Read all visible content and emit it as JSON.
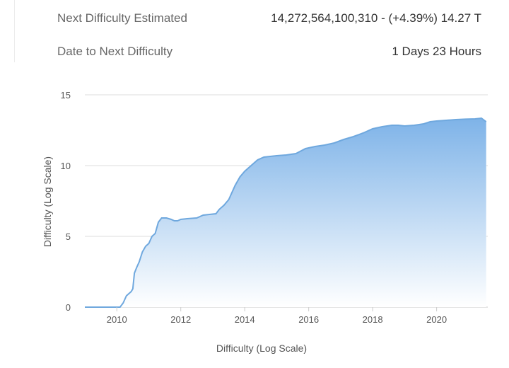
{
  "stats": {
    "next_difficulty_label": "Next Difficulty Estimated",
    "next_difficulty_value": "14,272,564,100,310 - (+4.39%) 14.27 T",
    "date_label": "Date to Next Difficulty",
    "date_value": "1 Days 23 Hours"
  },
  "colors": {
    "area_top": "#7eb3e8",
    "area_bottom": "#ffffff",
    "line": "#6fa8de",
    "grid": "#dddddd",
    "text": "#555555"
  },
  "chart_data": {
    "type": "area",
    "title": "",
    "xlabel": "Difficulty (Log Scale)",
    "ylabel": "Difficulty (Log Scale)",
    "xlim": [
      2009.0,
      2021.6
    ],
    "ylim": [
      0,
      15
    ],
    "x_ticks": [
      2010,
      2012,
      2014,
      2016,
      2018,
      2020
    ],
    "y_ticks": [
      0,
      5,
      10,
      15
    ],
    "grid": true,
    "series": [
      {
        "x": [
          2009.0,
          2009.5,
          2010.0,
          2010.1,
          2010.2,
          2010.3,
          2010.45,
          2010.5,
          2010.55,
          2010.62,
          2010.7,
          2010.8,
          2010.9,
          2011.0,
          2011.1,
          2011.2,
          2011.3,
          2011.4,
          2011.45,
          2011.55,
          2011.7,
          2011.8,
          2011.9,
          2012.0,
          2012.2,
          2012.5,
          2012.7,
          2012.9,
          2013.1,
          2013.2,
          2013.35,
          2013.5,
          2013.7,
          2013.85,
          2014.0,
          2014.2,
          2014.4,
          2014.6,
          2014.8,
          2015.0,
          2015.3,
          2015.6,
          2015.9,
          2016.2,
          2016.5,
          2016.8,
          2017.1,
          2017.4,
          2017.7,
          2018.0,
          2018.3,
          2018.6,
          2018.8,
          2019.0,
          2019.3,
          2019.6,
          2019.8,
          2020.0,
          2020.3,
          2020.6,
          2020.9,
          2021.2,
          2021.4,
          2021.55
        ],
        "y": [
          0,
          0,
          0,
          0,
          0.3,
          0.8,
          1.1,
          1.3,
          2.4,
          2.8,
          3.2,
          3.9,
          4.3,
          4.5,
          5.0,
          5.2,
          6.0,
          6.3,
          6.3,
          6.3,
          6.2,
          6.1,
          6.1,
          6.2,
          6.25,
          6.3,
          6.5,
          6.55,
          6.6,
          6.9,
          7.2,
          7.6,
          8.6,
          9.2,
          9.6,
          10.0,
          10.4,
          10.6,
          10.65,
          10.7,
          10.75,
          10.85,
          11.2,
          11.35,
          11.45,
          11.6,
          11.85,
          12.05,
          12.3,
          12.6,
          12.75,
          12.85,
          12.85,
          12.8,
          12.85,
          12.95,
          13.1,
          13.15,
          13.2,
          13.25,
          13.28,
          13.3,
          13.35,
          13.1
        ]
      }
    ]
  }
}
